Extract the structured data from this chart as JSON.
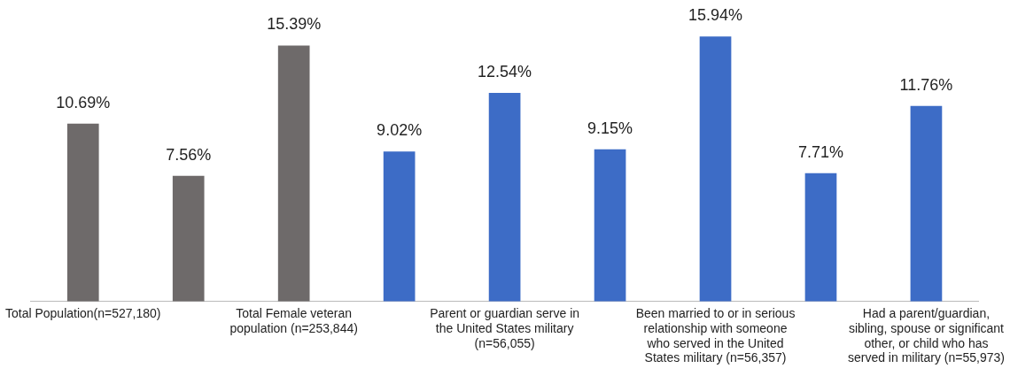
{
  "chart_data": {
    "type": "bar",
    "categories": [
      "Total Population(n=527,180)",
      null,
      "Total Female veteran population (n=253,844)",
      null,
      "Parent or guardian serve in the United States military (n=56,055)",
      null,
      "Been married to or in serious relationship with someone who served in the United States military (n=56,357)",
      null,
      "Had a parent/guardian, sibling, spouse or significant other, or child who has served in military (n=55,973)"
    ],
    "values": [
      10.69,
      7.56,
      15.39,
      9.02,
      12.54,
      9.15,
      15.94,
      7.71,
      11.76
    ],
    "colors": [
      "#6e6a6a",
      "#6e6a6a",
      "#6e6a6a",
      "#3d6cc6",
      "#3d6cc6",
      "#3d6cc6",
      "#3d6cc6",
      "#3d6cc6",
      "#3d6cc6"
    ],
    "value_labels": [
      "10.69%",
      "7.56%",
      "15.39%",
      "9.02%",
      "12.54%",
      "9.15%",
      "15.94%",
      "7.71%",
      "11.76%"
    ],
    "grid": false,
    "legend": false
  }
}
